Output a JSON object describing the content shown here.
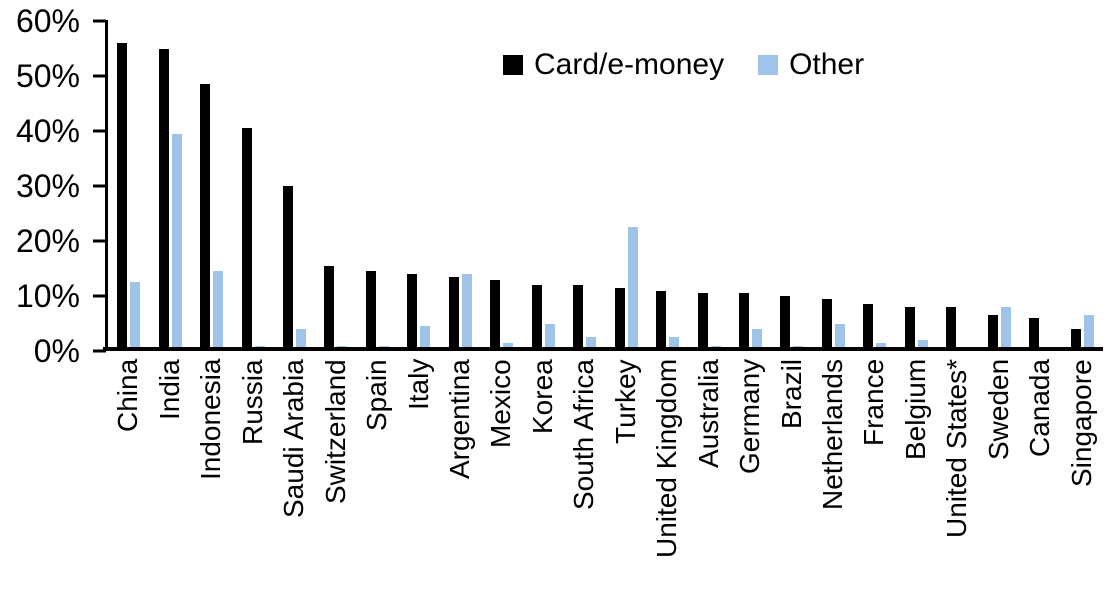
{
  "legend": {
    "card_label": "Card/e-money",
    "other_label": "Other"
  },
  "colors": {
    "card": "#000000",
    "other": "#9FC4E7",
    "axis": "#000000",
    "background": "#FFFFFF"
  },
  "chart_data": {
    "type": "bar",
    "title": "",
    "xlabel": "",
    "ylabel": "",
    "ylim": [
      0,
      60
    ],
    "grid": false,
    "legend_position": "top-center",
    "yticks": [
      {
        "value": 0,
        "label": "0%"
      },
      {
        "value": 10,
        "label": "10%"
      },
      {
        "value": 20,
        "label": "20%"
      },
      {
        "value": 30,
        "label": "30%"
      },
      {
        "value": 40,
        "label": "40%"
      },
      {
        "value": 50,
        "label": "50%"
      },
      {
        "value": 60,
        "label": "60%"
      }
    ],
    "categories": [
      "China",
      "India",
      "Indonesia",
      "Russia",
      "Saudi Arabia",
      "Switzerland",
      "Spain",
      "Italy",
      "Argentina",
      "Mexico",
      "Korea",
      "South Africa",
      "Turkey",
      "United Kingdom",
      "Australia",
      "Germany",
      "Brazil",
      "Netherlands",
      "France",
      "Belgium",
      "United States*",
      "Sweden",
      "Canada",
      "Singapore"
    ],
    "series": [
      {
        "name": "Card/e-money",
        "color": "#000000",
        "values": [
          56,
          55,
          48.5,
          40.5,
          30,
          15.5,
          14.5,
          14,
          13.5,
          13,
          12,
          12,
          11.5,
          11,
          10.5,
          10.5,
          10,
          9.5,
          8.5,
          8,
          8,
          6.5,
          6,
          4
        ]
      },
      {
        "name": "Other",
        "color": "#9FC4E7",
        "values": [
          12.5,
          39.5,
          14.5,
          1,
          4,
          1,
          1,
          4.5,
          14,
          1.5,
          5,
          2.5,
          22.5,
          2.5,
          1,
          4,
          1,
          5,
          1.5,
          2,
          0.3,
          8,
          0,
          6.5
        ]
      }
    ]
  }
}
